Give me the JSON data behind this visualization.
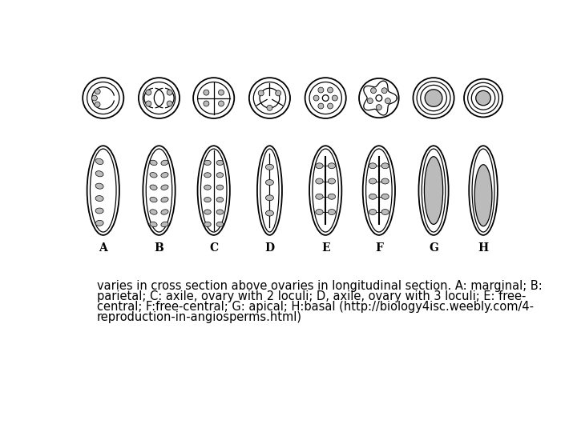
{
  "background_color": "#ffffff",
  "text_color": "#000000",
  "caption_line1": "varies in cross section above ovaries in longitudinal section. A: marginal; B:",
  "caption_line2": "parietal; C: axile, ovary with 2 loculi; D, axile, ovary with 3 loculi; E: free-",
  "caption_line3": "central; F:free-central; G: apical; H:basal (http://biology4isc.weebly.com/4-",
  "caption_line4": "reproduction-in-angiosperms.html)",
  "caption_fontsize": 10.5,
  "labels": [
    "A",
    "B",
    "C",
    "D",
    "E",
    "F",
    "G",
    "H"
  ],
  "seed_color": "#bbbbbb",
  "lw_outer": 1.3,
  "lw_inner": 0.9
}
